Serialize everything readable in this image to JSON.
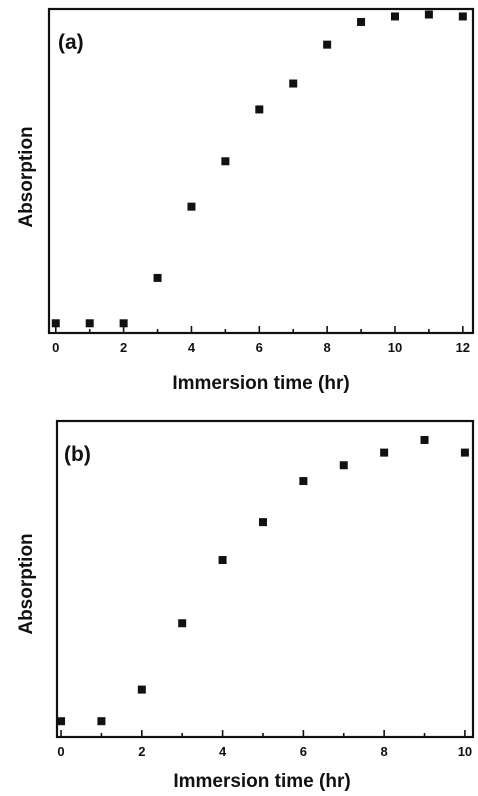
{
  "chart_data": [
    {
      "type": "scatter",
      "panel_label": "(a)",
      "xlabel": "Immersion time (hr)",
      "ylabel": "Absorption",
      "xlim": [
        -0.2,
        12.3
      ],
      "ylim": [
        0,
        1.0
      ],
      "xticks": [
        "0",
        "2",
        "4",
        "6",
        "8",
        "10",
        "12"
      ],
      "x": [
        0,
        1,
        2,
        3,
        4,
        5,
        6,
        7,
        8,
        9,
        10,
        11,
        12
      ],
      "y": [
        0.03,
        0.03,
        0.03,
        0.17,
        0.39,
        0.53,
        0.69,
        0.77,
        0.89,
        0.96,
        0.977,
        0.983,
        0.977
      ],
      "marker": "square",
      "grid": false
    },
    {
      "type": "scatter",
      "panel_label": "(b)",
      "xlabel": "Immersion time (hr)",
      "ylabel": "Absorption",
      "xlim": [
        -0.1,
        10.2
      ],
      "ylim": [
        0,
        1.0
      ],
      "xticks": [
        "0",
        "2",
        "4",
        "6",
        "8",
        "10"
      ],
      "x": [
        0,
        1,
        2,
        3,
        4,
        5,
        6,
        7,
        8,
        9,
        10
      ],
      "y": [
        0.05,
        0.05,
        0.15,
        0.36,
        0.56,
        0.68,
        0.81,
        0.86,
        0.9,
        0.94,
        0.9
      ],
      "marker": "square",
      "grid": false
    }
  ]
}
